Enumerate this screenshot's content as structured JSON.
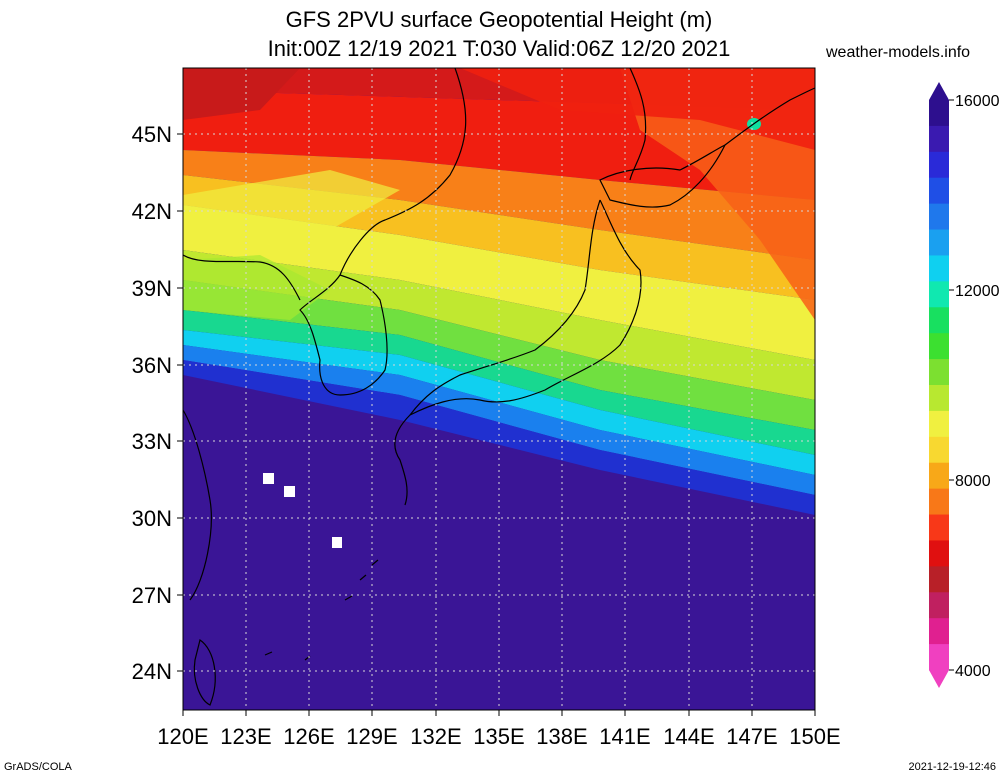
{
  "header": {
    "title_line1": "GFS 2PVU surface Geopotential Height (m)",
    "title_line2": "Init:00Z 12/19 2021 T:030 Valid:06Z 12/20 2021",
    "site": "weather-models.info"
  },
  "footer": {
    "left": "GrADS/COLA",
    "right": "2021-12-19-12:46"
  },
  "axes": {
    "lon_ticks": [
      "120E",
      "123E",
      "126E",
      "129E",
      "132E",
      "135E",
      "138E",
      "141E",
      "144E",
      "147E",
      "150E"
    ],
    "lat_ticks": [
      "45N",
      "42N",
      "39N",
      "36N",
      "33N",
      "30N",
      "27N",
      "24N"
    ]
  },
  "colorbar": {
    "labels": [
      "16000",
      "12000",
      "8000",
      "4000"
    ],
    "colors": [
      "#2d0f8e",
      "#3a1ab0",
      "#2a2ad8",
      "#1f4fe6",
      "#1f78ec",
      "#1aa0f0",
      "#0fd0f0",
      "#10e8b0",
      "#18e060",
      "#3ce030",
      "#7ce030",
      "#b8e830",
      "#f0f040",
      "#f8d830",
      "#f8a818",
      "#f87818",
      "#f83818",
      "#e01010",
      "#b82028",
      "#c02060",
      "#e02090",
      "#f040c0"
    ]
  },
  "colors": {
    "plot_background": "#3a1596",
    "coastline": "#000000",
    "grid": "#cfcfcf"
  }
}
